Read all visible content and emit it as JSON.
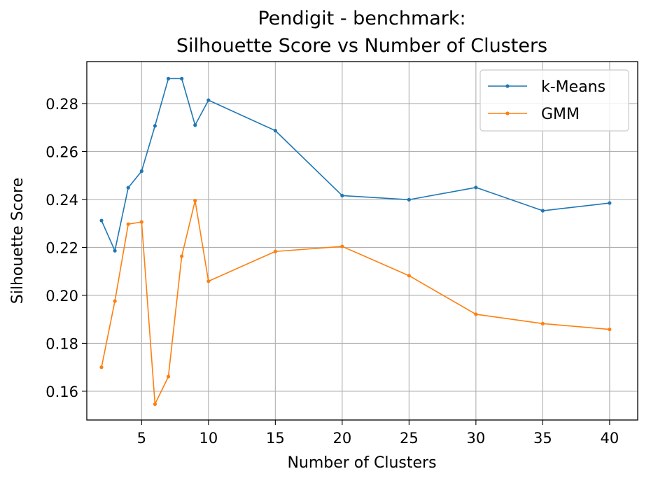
{
  "chart_data": {
    "type": "line",
    "title": [
      "Pendigit - benchmark:",
      "Silhouette Score vs Number of Clusters"
    ],
    "xlabel": "Number of Clusters",
    "ylabel": "Silhouette Score",
    "xlim": [
      0.9,
      42.1
    ],
    "ylim": [
      0.148,
      0.2975
    ],
    "xticks": [
      5,
      10,
      15,
      20,
      25,
      30,
      35,
      40
    ],
    "yticks": [
      0.16,
      0.18,
      0.2,
      0.22,
      0.24,
      0.26,
      0.28
    ],
    "grid": true,
    "legend_position": "top-right",
    "x": [
      2,
      3,
      4,
      5,
      6,
      7,
      8,
      9,
      10,
      15,
      20,
      25,
      30,
      35,
      40
    ],
    "series": [
      {
        "name": "k-Means",
        "color": "#1f77b4",
        "values": [
          0.2312,
          0.2186,
          0.2449,
          0.2518,
          0.2707,
          0.2904,
          0.2904,
          0.271,
          0.2814,
          0.2687,
          0.2416,
          0.2399,
          0.245,
          0.2353,
          0.2385
        ]
      },
      {
        "name": "GMM",
        "color": "#ff7f0e",
        "values": [
          0.17,
          0.1976,
          0.2297,
          0.2306,
          0.1546,
          0.1661,
          0.2163,
          0.2395,
          0.2059,
          0.2183,
          0.2204,
          0.2082,
          0.1921,
          0.1882,
          0.1858
        ]
      }
    ]
  }
}
